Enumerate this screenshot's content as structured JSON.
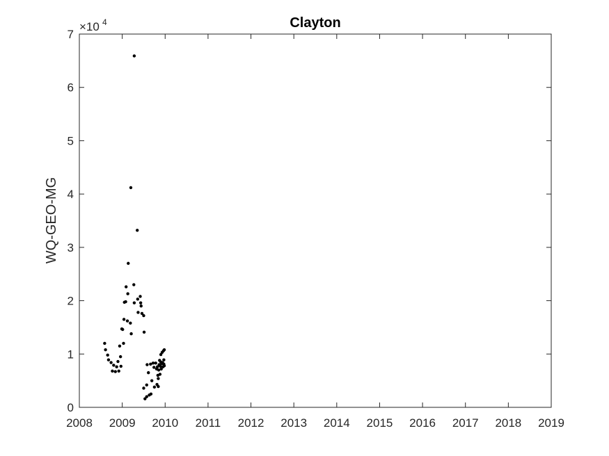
{
  "chart_data": {
    "type": "scatter",
    "title": "Clayton",
    "xlabel": "",
    "ylabel": "WQ-GEO-MG",
    "y_exponent_label": {
      "base": "×10",
      "exponent": "4"
    },
    "xlim": [
      2008,
      2019
    ],
    "ylim": [
      0,
      70000
    ],
    "x_ticks": [
      2008,
      2009,
      2010,
      2011,
      2012,
      2013,
      2014,
      2015,
      2016,
      2017,
      2018,
      2019
    ],
    "y_ticks": [
      0,
      10000,
      20000,
      30000,
      40000,
      50000,
      60000,
      70000
    ],
    "y_tick_labels": [
      "0",
      "1",
      "2",
      "3",
      "4",
      "5",
      "6",
      "7"
    ],
    "grid": false,
    "marker_color": "#000000",
    "points": [
      {
        "x": 2008.59,
        "y": 12000
      },
      {
        "x": 2008.61,
        "y": 10800
      },
      {
        "x": 2008.66,
        "y": 9800
      },
      {
        "x": 2008.68,
        "y": 8900
      },
      {
        "x": 2008.74,
        "y": 8400
      },
      {
        "x": 2008.77,
        "y": 6800
      },
      {
        "x": 2008.8,
        "y": 7900
      },
      {
        "x": 2008.84,
        "y": 6700
      },
      {
        "x": 2008.87,
        "y": 7600
      },
      {
        "x": 2008.9,
        "y": 8600
      },
      {
        "x": 2008.92,
        "y": 6800
      },
      {
        "x": 2008.94,
        "y": 11500
      },
      {
        "x": 2008.96,
        "y": 9500
      },
      {
        "x": 2008.97,
        "y": 7700
      },
      {
        "x": 2008.99,
        "y": 14700
      },
      {
        "x": 2009.01,
        "y": 14600
      },
      {
        "x": 2009.03,
        "y": 12000
      },
      {
        "x": 2009.04,
        "y": 16500
      },
      {
        "x": 2009.05,
        "y": 19700
      },
      {
        "x": 2009.08,
        "y": 19800
      },
      {
        "x": 2009.09,
        "y": 22600
      },
      {
        "x": 2009.12,
        "y": 16200
      },
      {
        "x": 2009.13,
        "y": 21300
      },
      {
        "x": 2009.14,
        "y": 27000
      },
      {
        "x": 2009.19,
        "y": 15800
      },
      {
        "x": 2009.2,
        "y": 41200
      },
      {
        "x": 2009.21,
        "y": 13800
      },
      {
        "x": 2009.27,
        "y": 23000
      },
      {
        "x": 2009.28,
        "y": 19600
      },
      {
        "x": 2009.28,
        "y": 65900
      },
      {
        "x": 2009.35,
        "y": 33200
      },
      {
        "x": 2009.36,
        "y": 20300
      },
      {
        "x": 2009.37,
        "y": 17800
      },
      {
        "x": 2009.42,
        "y": 20800
      },
      {
        "x": 2009.43,
        "y": 19600
      },
      {
        "x": 2009.44,
        "y": 19000
      },
      {
        "x": 2009.46,
        "y": 17600
      },
      {
        "x": 2009.5,
        "y": 17200
      },
      {
        "x": 2009.51,
        "y": 14100
      },
      {
        "x": 2009.5,
        "y": 3600
      },
      {
        "x": 2009.53,
        "y": 1600
      },
      {
        "x": 2009.57,
        "y": 4200
      },
      {
        "x": 2009.57,
        "y": 2000
      },
      {
        "x": 2009.58,
        "y": 8000
      },
      {
        "x": 2009.61,
        "y": 6500
      },
      {
        "x": 2009.63,
        "y": 2300
      },
      {
        "x": 2009.66,
        "y": 8100
      },
      {
        "x": 2009.67,
        "y": 2500
      },
      {
        "x": 2009.69,
        "y": 5000
      },
      {
        "x": 2009.72,
        "y": 8300
      },
      {
        "x": 2009.74,
        "y": 7500
      },
      {
        "x": 2009.75,
        "y": 3800
      },
      {
        "x": 2009.78,
        "y": 8300
      },
      {
        "x": 2009.8,
        "y": 7200
      },
      {
        "x": 2009.81,
        "y": 4300
      },
      {
        "x": 2009.82,
        "y": 7600
      },
      {
        "x": 2009.83,
        "y": 6000
      },
      {
        "x": 2009.84,
        "y": 3900
      },
      {
        "x": 2009.84,
        "y": 5400
      },
      {
        "x": 2009.85,
        "y": 7000
      },
      {
        "x": 2009.86,
        "y": 8000
      },
      {
        "x": 2009.87,
        "y": 8800
      },
      {
        "x": 2009.88,
        "y": 6200
      },
      {
        "x": 2009.89,
        "y": 7700
      },
      {
        "x": 2009.9,
        "y": 9900
      },
      {
        "x": 2009.9,
        "y": 8500
      },
      {
        "x": 2009.91,
        "y": 7200
      },
      {
        "x": 2009.92,
        "y": 8200
      },
      {
        "x": 2009.93,
        "y": 10300
      },
      {
        "x": 2009.94,
        "y": 8400
      },
      {
        "x": 2009.95,
        "y": 7600
      },
      {
        "x": 2009.96,
        "y": 10600
      },
      {
        "x": 2009.97,
        "y": 8900
      },
      {
        "x": 2009.97,
        "y": 8100
      },
      {
        "x": 2009.98,
        "y": 10800
      },
      {
        "x": 2009.98,
        "y": 7800
      }
    ]
  }
}
